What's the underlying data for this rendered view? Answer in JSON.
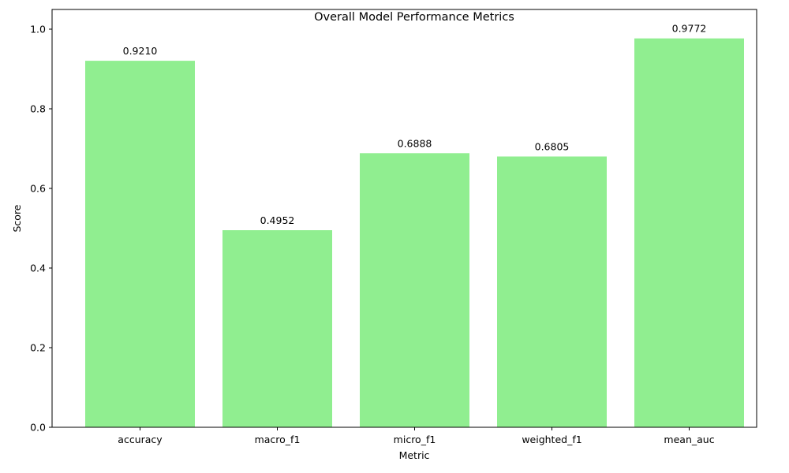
{
  "chart_data": {
    "type": "bar",
    "title": "Overall Model Performance Metrics",
    "xlabel": "Metric",
    "ylabel": "Score",
    "categories": [
      "accuracy",
      "macro_f1",
      "micro_f1",
      "weighted_f1",
      "mean_auc"
    ],
    "values": [
      0.921,
      0.4952,
      0.6888,
      0.6805,
      0.9772
    ],
    "value_labels": [
      "0.9210",
      "0.4952",
      "0.6888",
      "0.6805",
      "0.9772"
    ],
    "ylim": [
      0,
      1.05
    ],
    "yticks": [
      0.0,
      0.2,
      0.4,
      0.6,
      0.8,
      1.0
    ],
    "ytick_labels": [
      "0.0",
      "0.2",
      "0.4",
      "0.6",
      "0.8",
      "1.0"
    ],
    "grid": false,
    "legend": "none",
    "bar_color": "#90ee90"
  }
}
